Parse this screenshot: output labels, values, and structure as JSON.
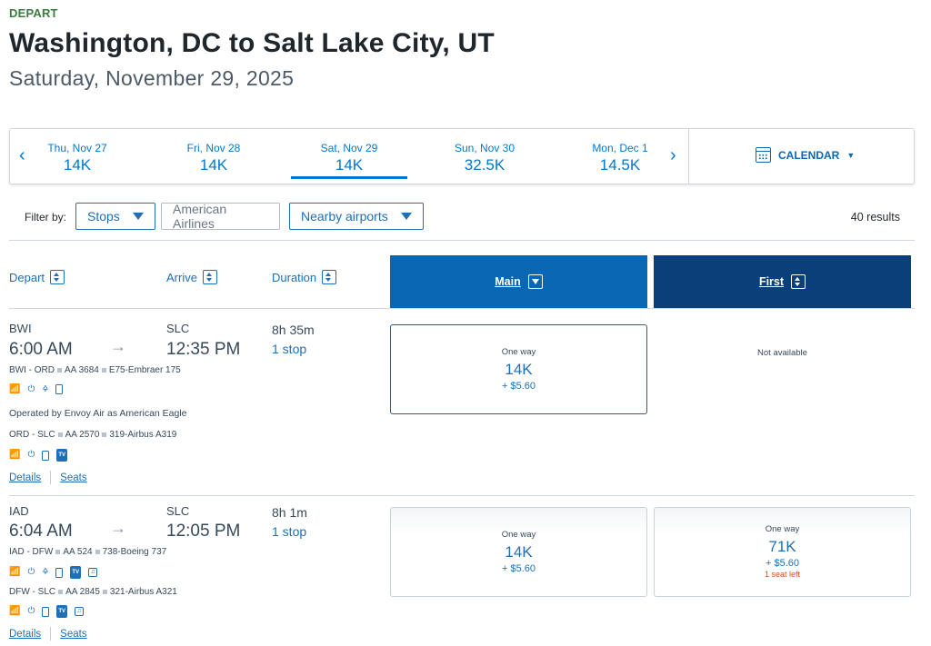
{
  "header": {
    "eyebrow": "DEPART",
    "title": "Washington, DC to Salt Lake City, UT",
    "subtitle": "Saturday, November 29, 2025"
  },
  "datebar": {
    "prev_icon": "chevron-left-icon",
    "next_icon": "chevron-right-icon",
    "dates": [
      {
        "day": "Thu, Nov 27",
        "price": "14K",
        "selected": false
      },
      {
        "day": "Fri, Nov 28",
        "price": "14K",
        "selected": false
      },
      {
        "day": "Sat, Nov 29",
        "price": "14K",
        "selected": true
      },
      {
        "day": "Sun, Nov 30",
        "price": "32.5K",
        "selected": false
      },
      {
        "day": "Mon, Dec 1",
        "price": "14.5K",
        "selected": false
      }
    ],
    "calendar_label": "CALENDAR"
  },
  "filters": {
    "label": "Filter by:",
    "stops": "Stops",
    "airline": "American Airlines",
    "nearby": "Nearby airports",
    "results": "40 results"
  },
  "columns": {
    "depart": "Depart",
    "arrive": "Arrive",
    "duration": "Duration",
    "main": "Main",
    "first": "First"
  },
  "flights": [
    {
      "from": "BWI",
      "to": "SLC",
      "depart_time": "6:00 AM",
      "arrive_time": "12:35 PM",
      "duration": "8h 35m",
      "stops": "1 stop",
      "segments": [
        {
          "route": "BWI - ORD",
          "flight": "AA 3684",
          "aircraft": "E75-Embraer 175"
        },
        {
          "route": "ORD - SLC",
          "flight": "AA 2570",
          "aircraft": "319-Airbus A319"
        }
      ],
      "operated_by": "Operated by Envoy Air as American Eagle",
      "main": {
        "label": "One way",
        "miles": "14K",
        "tax": "+ $5.60"
      },
      "first": {
        "not_available": "Not available"
      },
      "details": "Details",
      "seats": "Seats"
    },
    {
      "from": "IAD",
      "to": "SLC",
      "depart_time": "6:04 AM",
      "arrive_time": "12:05 PM",
      "duration": "8h 1m",
      "stops": "1 stop",
      "segments": [
        {
          "route": "IAD - DFW",
          "flight": "AA 524",
          "aircraft": "738-Boeing 737"
        },
        {
          "route": "DFW - SLC",
          "flight": "AA 2845",
          "aircraft": "321-Airbus A321"
        }
      ],
      "main": {
        "label": "One way",
        "miles": "14K",
        "tax": "+ $5.60"
      },
      "first": {
        "label": "One way",
        "miles": "71K",
        "tax": "+ $5.60",
        "seats_left": "1 seat left"
      },
      "details": "Details",
      "seats": "Seats"
    }
  ],
  "amenity_icons": {
    "wifi": "wifi-icon",
    "power": "power-icon",
    "usb": "usb-icon",
    "device": "device-icon",
    "tv": "TV",
    "music": "music-icon"
  },
  "colors": {
    "primary_blue": "#0a67b3",
    "dark_blue": "#0a3f7a",
    "green": "#3a7b3e",
    "warning": "#c4561b"
  }
}
